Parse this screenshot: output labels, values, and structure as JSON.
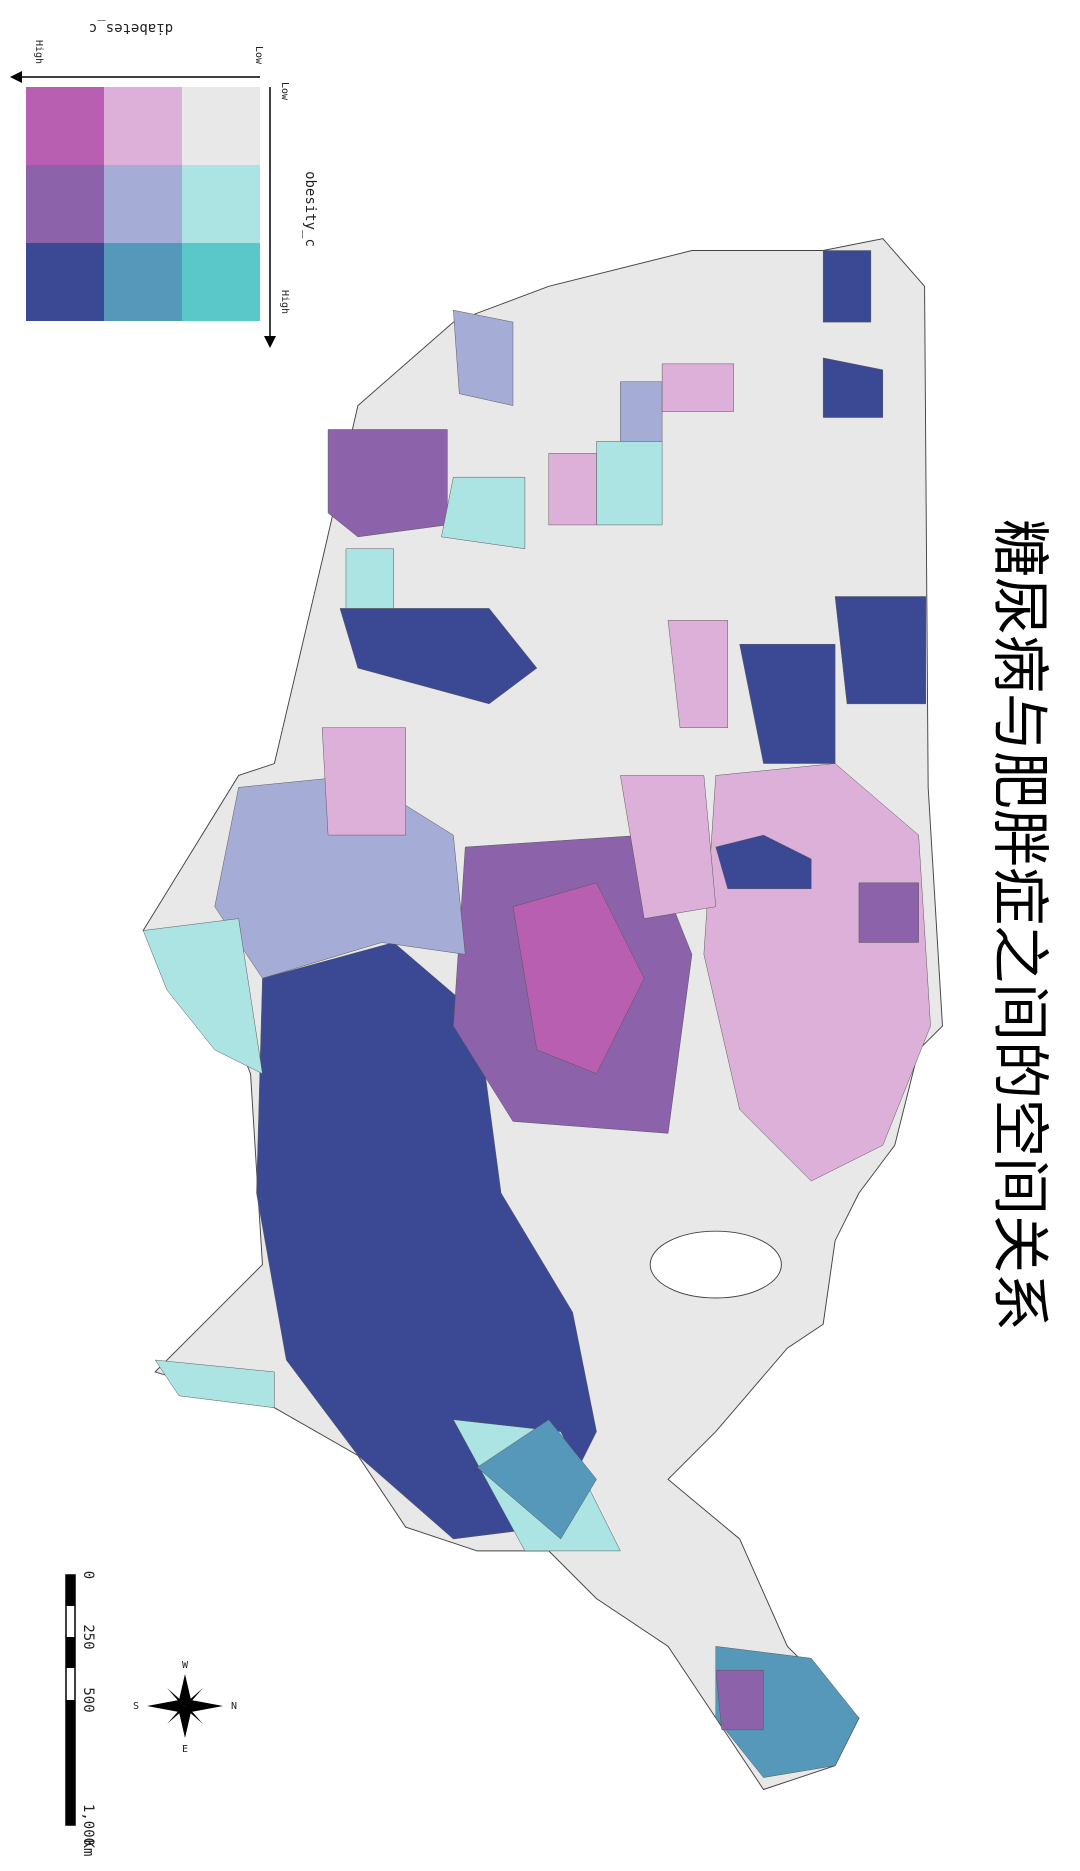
{
  "title": "糖尿病与肥胖症之间的空间关系",
  "legend": {
    "x_label": "diabetes_c",
    "x_high": "High",
    "x_low": "Low",
    "y_label": "obesity_c",
    "y_low": "Low",
    "y_high": "High",
    "colors": [
      "#b85fb1",
      "#ddb0d9",
      "#e8e8e8",
      "#8c62aa",
      "#a5add6",
      "#ace4e4",
      "#3b4994",
      "#5698b9",
      "#5ac8c8"
    ]
  },
  "scale_bar": {
    "labels": [
      "0",
      "250",
      "500",
      "1,000"
    ],
    "unit": "Km"
  },
  "compass": {
    "n": "N",
    "s": "S",
    "e": "E",
    "w": "W"
  }
}
